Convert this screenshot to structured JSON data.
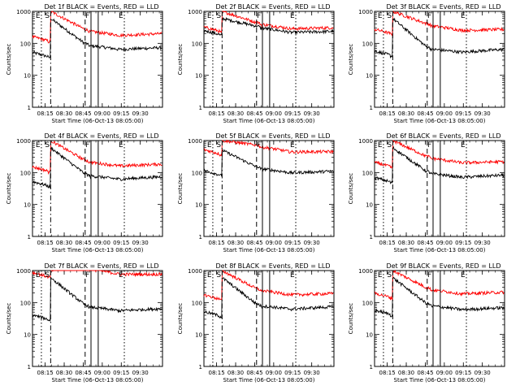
{
  "chart_data": [
    {
      "type": "line",
      "title": "Det 1f BLACK = Events, RED = LLD",
      "xlabel": "Start Time (06-Oct-13 08:05:00)",
      "ylabel": "Counts/sec",
      "yscale": "log",
      "ylim": [
        1,
        1000
      ],
      "xlim": [
        8.0833,
        9.7917
      ],
      "xticks": [
        "08:15",
        "08:30",
        "08:45",
        "09:00",
        "09:15",
        "09:30"
      ],
      "yticks": [
        "1",
        "10",
        "100",
        "1000"
      ],
      "event_lines": [
        {
          "label": "E",
          "x": 8.2,
          "style": "dotted"
        },
        {
          "label": "S",
          "x": 8.322,
          "style": "dashdot"
        },
        {
          "label": "",
          "x": 8.775,
          "style": "dashed"
        },
        {
          "label": "F",
          "x": 8.852,
          "style": "solid"
        },
        {
          "label": "",
          "x": 8.947,
          "style": "solid"
        },
        {
          "label": "E",
          "x": 9.29,
          "style": "dotted"
        }
      ],
      "series": [
        {
          "name": "Events",
          "color": "#000000",
          "base": 45,
          "peak": 600,
          "level": 65,
          "tail": 80
        },
        {
          "name": "LLD",
          "color": "#ff0000",
          "base": 140,
          "peak": 1000,
          "level": 180,
          "tail": 220
        }
      ]
    },
    {
      "type": "line",
      "title": "Det 2f BLACK = Events, RED = LLD",
      "xlabel": "Start Time (06-Oct-13 08:05:00)",
      "ylabel": "Counts/sec",
      "yscale": "log",
      "ylim": [
        1,
        1000
      ],
      "xlim": [
        8.0833,
        9.7917
      ],
      "xticks": [
        "08:15",
        "08:30",
        "08:45",
        "09:00",
        "09:15",
        "09:30"
      ],
      "yticks": [
        "1",
        "10",
        "100",
        "1000"
      ],
      "event_lines": [
        {
          "label": "E",
          "x": 8.2,
          "style": "dotted"
        },
        {
          "label": "S",
          "x": 8.322,
          "style": "dashdot"
        },
        {
          "label": "",
          "x": 8.775,
          "style": "dashed"
        },
        {
          "label": "F",
          "x": 8.852,
          "style": "solid"
        },
        {
          "label": "",
          "x": 8.947,
          "style": "solid"
        },
        {
          "label": "E",
          "x": 9.29,
          "style": "dotted"
        }
      ],
      "series": [
        {
          "name": "Events",
          "color": "#000000",
          "base": 220,
          "peak": 600,
          "level": 230,
          "tail": 260
        },
        {
          "name": "LLD",
          "color": "#ff0000",
          "base": 280,
          "peak": 1000,
          "level": 300,
          "tail": 340
        }
      ]
    },
    {
      "type": "line",
      "title": "Det 3f BLACK = Events, RED = LLD",
      "xlabel": "Start Time (06-Oct-13 08:05:00)",
      "ylabel": "Counts/sec",
      "yscale": "log",
      "ylim": [
        1,
        1000
      ],
      "xlim": [
        8.0833,
        9.7917
      ],
      "xticks": [
        "08:15",
        "08:30",
        "08:45",
        "09:00",
        "09:15",
        "09:30"
      ],
      "yticks": [
        "1",
        "10",
        "100",
        "1000"
      ],
      "event_lines": [
        {
          "label": "E",
          "x": 8.2,
          "style": "dotted"
        },
        {
          "label": "S",
          "x": 8.322,
          "style": "dashdot"
        },
        {
          "label": "",
          "x": 8.775,
          "style": "dashed"
        },
        {
          "label": "F",
          "x": 8.852,
          "style": "solid"
        },
        {
          "label": "",
          "x": 8.947,
          "style": "solid"
        },
        {
          "label": "E",
          "x": 9.29,
          "style": "dotted"
        }
      ],
      "series": [
        {
          "name": "Events",
          "color": "#000000",
          "base": 50,
          "peak": 600,
          "level": 50,
          "tail": 70
        },
        {
          "name": "LLD",
          "color": "#ff0000",
          "base": 240,
          "peak": 1000,
          "level": 270,
          "tail": 300
        }
      ]
    },
    {
      "type": "line",
      "title": "Det 4f BLACK = Events, RED = LLD",
      "xlabel": "Start Time (06-Oct-13 08:05:00)",
      "ylabel": "Counts/sec",
      "yscale": "log",
      "ylim": [
        1,
        1000
      ],
      "xlim": [
        8.0833,
        9.7917
      ],
      "xticks": [
        "08:15",
        "08:30",
        "08:45",
        "09:00",
        "09:15",
        "09:30"
      ],
      "yticks": [
        "1",
        "10",
        "100",
        "1000"
      ],
      "event_lines": [
        {
          "label": "E",
          "x": 8.2,
          "style": "dotted"
        },
        {
          "label": "S",
          "x": 8.322,
          "style": "dashdot"
        },
        {
          "label": "",
          "x": 8.775,
          "style": "dashed"
        },
        {
          "label": "F",
          "x": 8.852,
          "style": "solid"
        },
        {
          "label": "",
          "x": 8.947,
          "style": "solid"
        },
        {
          "label": "E",
          "x": 9.29,
          "style": "dotted"
        }
      ],
      "series": [
        {
          "name": "Events",
          "color": "#000000",
          "base": 45,
          "peak": 600,
          "level": 60,
          "tail": 80
        },
        {
          "name": "LLD",
          "color": "#ff0000",
          "base": 130,
          "peak": 1000,
          "level": 160,
          "tail": 200
        }
      ]
    },
    {
      "type": "line",
      "title": "Det 5f BLACK = Events, RED = LLD",
      "xlabel": "Start Time (06-Oct-13 08:05:00)",
      "ylabel": "Counts/sec",
      "yscale": "log",
      "ylim": [
        1,
        1000
      ],
      "xlim": [
        8.0833,
        9.7917
      ],
      "xticks": [
        "08:15",
        "08:30",
        "08:45",
        "09:00",
        "09:15",
        "09:30"
      ],
      "yticks": [
        "1",
        "10",
        "100",
        "1000"
      ],
      "event_lines": [
        {
          "label": "E",
          "x": 8.2,
          "style": "dotted"
        },
        {
          "label": "S",
          "x": 8.322,
          "style": "dashdot"
        },
        {
          "label": "",
          "x": 8.775,
          "style": "dashed"
        },
        {
          "label": "F",
          "x": 8.852,
          "style": "solid"
        },
        {
          "label": "",
          "x": 8.947,
          "style": "solid"
        },
        {
          "label": "E",
          "x": 9.29,
          "style": "dotted"
        }
      ],
      "series": [
        {
          "name": "Events",
          "color": "#000000",
          "base": 100,
          "peak": 500,
          "level": 100,
          "tail": 120
        },
        {
          "name": "LLD",
          "color": "#ff0000",
          "base": 450,
          "peak": 1000,
          "level": 480,
          "tail": 500
        }
      ]
    },
    {
      "type": "line",
      "title": "Det 6f BLACK = Events, RED = LLD",
      "xlabel": "Start Time (06-Oct-13 08:05:00)",
      "ylabel": "Counts/sec",
      "yscale": "log",
      "ylim": [
        1,
        1000
      ],
      "xlim": [
        8.0833,
        9.7917
      ],
      "xticks": [
        "08:15",
        "08:30",
        "08:45",
        "09:00",
        "09:15",
        "09:30"
      ],
      "yticks": [
        "1",
        "10",
        "100",
        "1000"
      ],
      "event_lines": [
        {
          "label": "E",
          "x": 8.2,
          "style": "dotted"
        },
        {
          "label": "S",
          "x": 8.322,
          "style": "dashdot"
        },
        {
          "label": "",
          "x": 8.775,
          "style": "dashed"
        },
        {
          "label": "F",
          "x": 8.852,
          "style": "solid"
        },
        {
          "label": "",
          "x": 8.947,
          "style": "solid"
        },
        {
          "label": "E",
          "x": 9.29,
          "style": "dotted"
        }
      ],
      "series": [
        {
          "name": "Events",
          "color": "#000000",
          "base": 60,
          "peak": 600,
          "level": 70,
          "tail": 90
        },
        {
          "name": "LLD",
          "color": "#ff0000",
          "base": 180,
          "peak": 1000,
          "level": 210,
          "tail": 240
        }
      ]
    },
    {
      "type": "line",
      "title": "Det 7f BLACK = Events, RED = LLD",
      "xlabel": "Start Time (06-Oct-13 08:05:00)",
      "ylabel": "Counts/sec",
      "yscale": "log",
      "ylim": [
        1,
        1000
      ],
      "xlim": [
        8.0833,
        9.7917
      ],
      "xticks": [
        "08:15",
        "08:30",
        "08:45",
        "09:00",
        "09:15",
        "09:30"
      ],
      "yticks": [
        "1",
        "10",
        "100",
        "1000"
      ],
      "event_lines": [
        {
          "label": "E",
          "x": 8.2,
          "style": "dotted"
        },
        {
          "label": "S",
          "x": 8.322,
          "style": "dashdot"
        },
        {
          "label": "",
          "x": 8.775,
          "style": "dashed"
        },
        {
          "label": "F",
          "x": 8.852,
          "style": "solid"
        },
        {
          "label": "",
          "x": 8.947,
          "style": "solid"
        },
        {
          "label": "E",
          "x": 9.29,
          "style": "dotted"
        }
      ],
      "series": [
        {
          "name": "Events",
          "color": "#000000",
          "base": 35,
          "peak": 600,
          "level": 55,
          "tail": 70
        },
        {
          "name": "LLD",
          "color": "#ff0000",
          "base": 750,
          "peak": 1000,
          "level": 850,
          "tail": 850
        }
      ]
    },
    {
      "type": "line",
      "title": "Det 8f BLACK = Events, RED = LLD",
      "xlabel": "Start Time (06-Oct-13 08:05:00)",
      "ylabel": "Counts/sec",
      "yscale": "log",
      "ylim": [
        1,
        1000
      ],
      "xlim": [
        8.0833,
        9.7917
      ],
      "xticks": [
        "08:15",
        "08:30",
        "08:45",
        "09:00",
        "09:15",
        "09:30"
      ],
      "yticks": [
        "1",
        "10",
        "100",
        "1000"
      ],
      "event_lines": [
        {
          "label": "E",
          "x": 8.2,
          "style": "dotted"
        },
        {
          "label": "S",
          "x": 8.322,
          "style": "dashdot"
        },
        {
          "label": "",
          "x": 8.775,
          "style": "dashed"
        },
        {
          "label": "F",
          "x": 8.852,
          "style": "solid"
        },
        {
          "label": "",
          "x": 8.947,
          "style": "solid"
        },
        {
          "label": "E",
          "x": 9.29,
          "style": "dotted"
        }
      ],
      "series": [
        {
          "name": "Events",
          "color": "#000000",
          "base": 45,
          "peak": 600,
          "level": 60,
          "tail": 80
        },
        {
          "name": "LLD",
          "color": "#ff0000",
          "base": 150,
          "peak": 1000,
          "level": 180,
          "tail": 210
        }
      ]
    },
    {
      "type": "line",
      "title": "Det 9f BLACK = Events, RED = LLD",
      "xlabel": "Start Time (06-Oct-13 08:05:00)",
      "ylabel": "Counts/sec",
      "yscale": "log",
      "ylim": [
        1,
        1000
      ],
      "xlim": [
        8.0833,
        9.7917
      ],
      "xticks": [
        "08:15",
        "08:30",
        "08:45",
        "09:00",
        "09:15",
        "09:30"
      ],
      "yticks": [
        "1",
        "10",
        "100",
        "1000"
      ],
      "event_lines": [
        {
          "label": "E",
          "x": 8.2,
          "style": "dotted"
        },
        {
          "label": "S",
          "x": 8.322,
          "style": "dashdot"
        },
        {
          "label": "",
          "x": 8.775,
          "style": "dashed"
        },
        {
          "label": "F",
          "x": 8.852,
          "style": "solid"
        },
        {
          "label": "",
          "x": 8.947,
          "style": "solid"
        },
        {
          "label": "E",
          "x": 9.29,
          "style": "dotted"
        }
      ],
      "series": [
        {
          "name": "Events",
          "color": "#000000",
          "base": 50,
          "peak": 600,
          "level": 60,
          "tail": 75
        },
        {
          "name": "LLD",
          "color": "#ff0000",
          "base": 170,
          "peak": 1000,
          "level": 190,
          "tail": 230
        }
      ]
    }
  ]
}
